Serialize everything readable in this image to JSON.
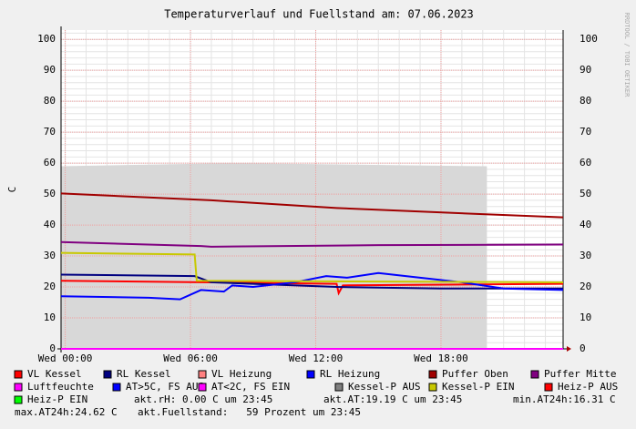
{
  "chart_data": {
    "type": "line",
    "title": "Temperaturverlauf und Fuellstand am: 07.06.2023",
    "y_label": "C",
    "watermark": "RRDTOOL / TOBI OETIKER",
    "xlim": [
      -0.2,
      23.85
    ],
    "xticks": [
      {
        "value": 0,
        "label": "Wed 00:00"
      },
      {
        "value": 6,
        "label": "Wed 06:00"
      },
      {
        "value": 12,
        "label": "Wed 12:00"
      },
      {
        "value": 18,
        "label": "Wed 18:00"
      }
    ],
    "ylim": [
      0,
      103
    ],
    "yticks": [
      0,
      10,
      20,
      30,
      40,
      50,
      60,
      70,
      80,
      90,
      100
    ],
    "grid": true,
    "fill_area": {
      "color": "#d8d8d8",
      "x": [
        -0.2,
        8,
        20.2
      ],
      "values": [
        59,
        60,
        59
      ]
    },
    "series": [
      {
        "name": "VL Kessel",
        "color": "#ff0000",
        "x": [
          -0.2,
          7,
          13,
          13.1,
          13.3,
          23.85
        ],
        "values": [
          22,
          21.5,
          21,
          18,
          20.5,
          21
        ]
      },
      {
        "name": "RL Kessel",
        "color": "#000080",
        "x": [
          -0.2,
          6.2,
          7,
          13,
          18,
          23.85
        ],
        "values": [
          24,
          23.5,
          21.5,
          20,
          19.5,
          19.5
        ]
      },
      {
        "name": "VL Heizung",
        "color": "#ff8080"
      },
      {
        "name": "RL Heizung",
        "color": "#0000ff",
        "x": [
          -0.2,
          4,
          5.5,
          6.5,
          7.6,
          8,
          9,
          11,
          12.5,
          13.5,
          15,
          17,
          19,
          21,
          23.85
        ],
        "values": [
          17,
          16.5,
          16,
          19,
          18.5,
          20.5,
          20,
          21.5,
          23.5,
          23,
          24.5,
          23,
          21.5,
          19.5,
          19
        ]
      },
      {
        "name": "Puffer Oben",
        "color": "#a00000",
        "x": [
          -0.2,
          7,
          13,
          20,
          23.85
        ],
        "values": [
          50.2,
          48,
          45.5,
          43.5,
          42.5
        ]
      },
      {
        "name": "Puffer Mitte",
        "color": "#800080",
        "x": [
          -0.2,
          6.5,
          7,
          15,
          23.85
        ],
        "values": [
          34.5,
          33.2,
          33,
          33.5,
          33.7
        ]
      },
      {
        "name": "Luftfeuchte",
        "color": "#ff00ff",
        "x": [
          -0.2,
          23.85
        ],
        "values": [
          0,
          0
        ]
      },
      {
        "name": "AT>5C, FS AUS",
        "color": "#0000ff"
      },
      {
        "name": "AT<2C, FS EIN",
        "color": "#ff00ff"
      },
      {
        "name": "Kessel-P AUS",
        "color": "#808080"
      },
      {
        "name": "Kessel-P EIN",
        "color": "#c8c800",
        "x": [
          -0.2,
          6.2,
          6.3,
          23.85
        ],
        "values": [
          31,
          30.5,
          22,
          21.5
        ]
      },
      {
        "name": "Heiz-P AUS",
        "color": "#ff0000"
      },
      {
        "name": "Heiz-P EIN",
        "color": "#00ff00"
      }
    ],
    "notes": [
      "akt.rH: 0.00 C um 23:45",
      "akt.AT:19.19 C um 23:45",
      "min.AT24h:16.31 C",
      "max.AT24h:24.62 C",
      "akt.Fuellstand:   59 Prozent um 23:45"
    ]
  }
}
